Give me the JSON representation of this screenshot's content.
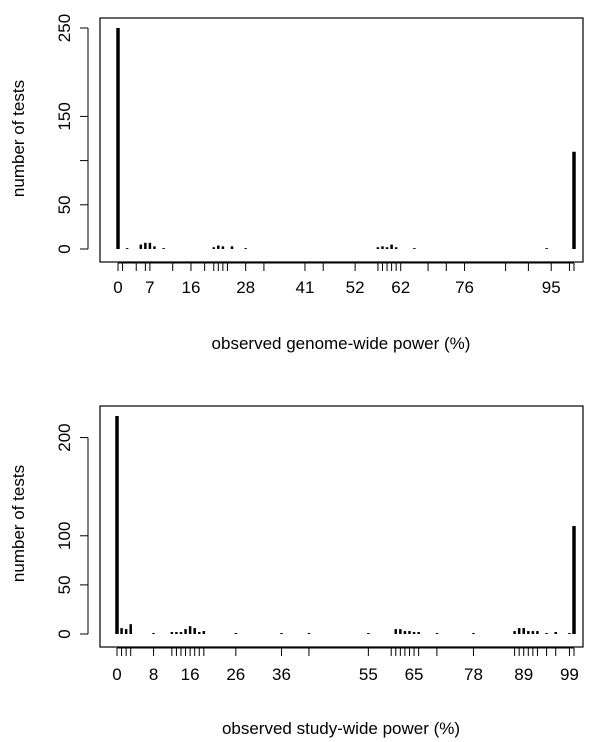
{
  "chart_data": [
    {
      "type": "bar",
      "xlabel": "observed genome-wide power (%)",
      "ylabel": "number of tests",
      "xlim": [
        -5,
        102
      ],
      "ylim": [
        0,
        250
      ],
      "y_ticks": [
        0,
        50,
        100,
        150,
        250
      ],
      "y_tick_labels": [
        "0",
        "50",
        "",
        "150",
        "250"
      ],
      "x_tick_labels": [
        {
          "x": 0,
          "label": "0"
        },
        {
          "x": 7,
          "label": "7"
        },
        {
          "x": 16,
          "label": "16"
        },
        {
          "x": 28,
          "label": "28"
        },
        {
          "x": 41,
          "label": "41"
        },
        {
          "x": 52,
          "label": "52"
        },
        {
          "x": 62,
          "label": "62"
        },
        {
          "x": 76,
          "label": "76"
        },
        {
          "x": 95,
          "label": "95"
        }
      ],
      "x_ticks": [
        0,
        1,
        4,
        6,
        7,
        12,
        16,
        19,
        21,
        22,
        23,
        24,
        28,
        32,
        41,
        45,
        52,
        57,
        58,
        59,
        60,
        61,
        62,
        68,
        72,
        76,
        85,
        90,
        95,
        99,
        100
      ],
      "x": [
        0,
        2,
        5,
        6,
        7,
        8,
        10,
        21,
        22,
        23,
        25,
        28,
        57,
        58,
        59,
        60,
        61,
        65,
        94,
        100
      ],
      "values": [
        250,
        1,
        5,
        7,
        7,
        3,
        1,
        2,
        4,
        3,
        3,
        1,
        2,
        3,
        2,
        5,
        2,
        1,
        1,
        110
      ]
    },
    {
      "type": "bar",
      "xlabel": "observed study-wide power (%)",
      "ylabel": "number of tests",
      "xlim": [
        -5,
        102
      ],
      "ylim": [
        0,
        225
      ],
      "y_ticks": [
        0,
        50,
        100,
        200
      ],
      "y_tick_labels": [
        "0",
        "50",
        "100",
        "200"
      ],
      "x_tick_labels": [
        {
          "x": 0,
          "label": "0"
        },
        {
          "x": 8,
          "label": "8"
        },
        {
          "x": 16,
          "label": "16"
        },
        {
          "x": 26,
          "label": "26"
        },
        {
          "x": 36,
          "label": "36"
        },
        {
          "x": 55,
          "label": "55"
        },
        {
          "x": 65,
          "label": "65"
        },
        {
          "x": 78,
          "label": "78"
        },
        {
          "x": 89,
          "label": "89"
        },
        {
          "x": 99,
          "label": "99"
        }
      ],
      "x_ticks": [
        0,
        1,
        2,
        3,
        8,
        12,
        13,
        14,
        15,
        16,
        17,
        18,
        19,
        26,
        36,
        42,
        55,
        60,
        61,
        62,
        63,
        64,
        65,
        66,
        70,
        78,
        87,
        88,
        89,
        90,
        91,
        92,
        94,
        96,
        99,
        100
      ],
      "x": [
        0,
        1,
        2,
        3,
        8,
        12,
        13,
        14,
        15,
        16,
        17,
        18,
        19,
        26,
        36,
        42,
        55,
        61,
        62,
        63,
        64,
        65,
        66,
        70,
        78,
        87,
        88,
        89,
        90,
        91,
        92,
        94,
        96,
        99,
        100
      ],
      "values": [
        222,
        6,
        5,
        10,
        1,
        2,
        2,
        2,
        5,
        8,
        6,
        2,
        3,
        1,
        1,
        1,
        1,
        5,
        5,
        3,
        3,
        2,
        2,
        1,
        1,
        3,
        6,
        6,
        3,
        3,
        3,
        1,
        2,
        1,
        110
      ]
    }
  ]
}
